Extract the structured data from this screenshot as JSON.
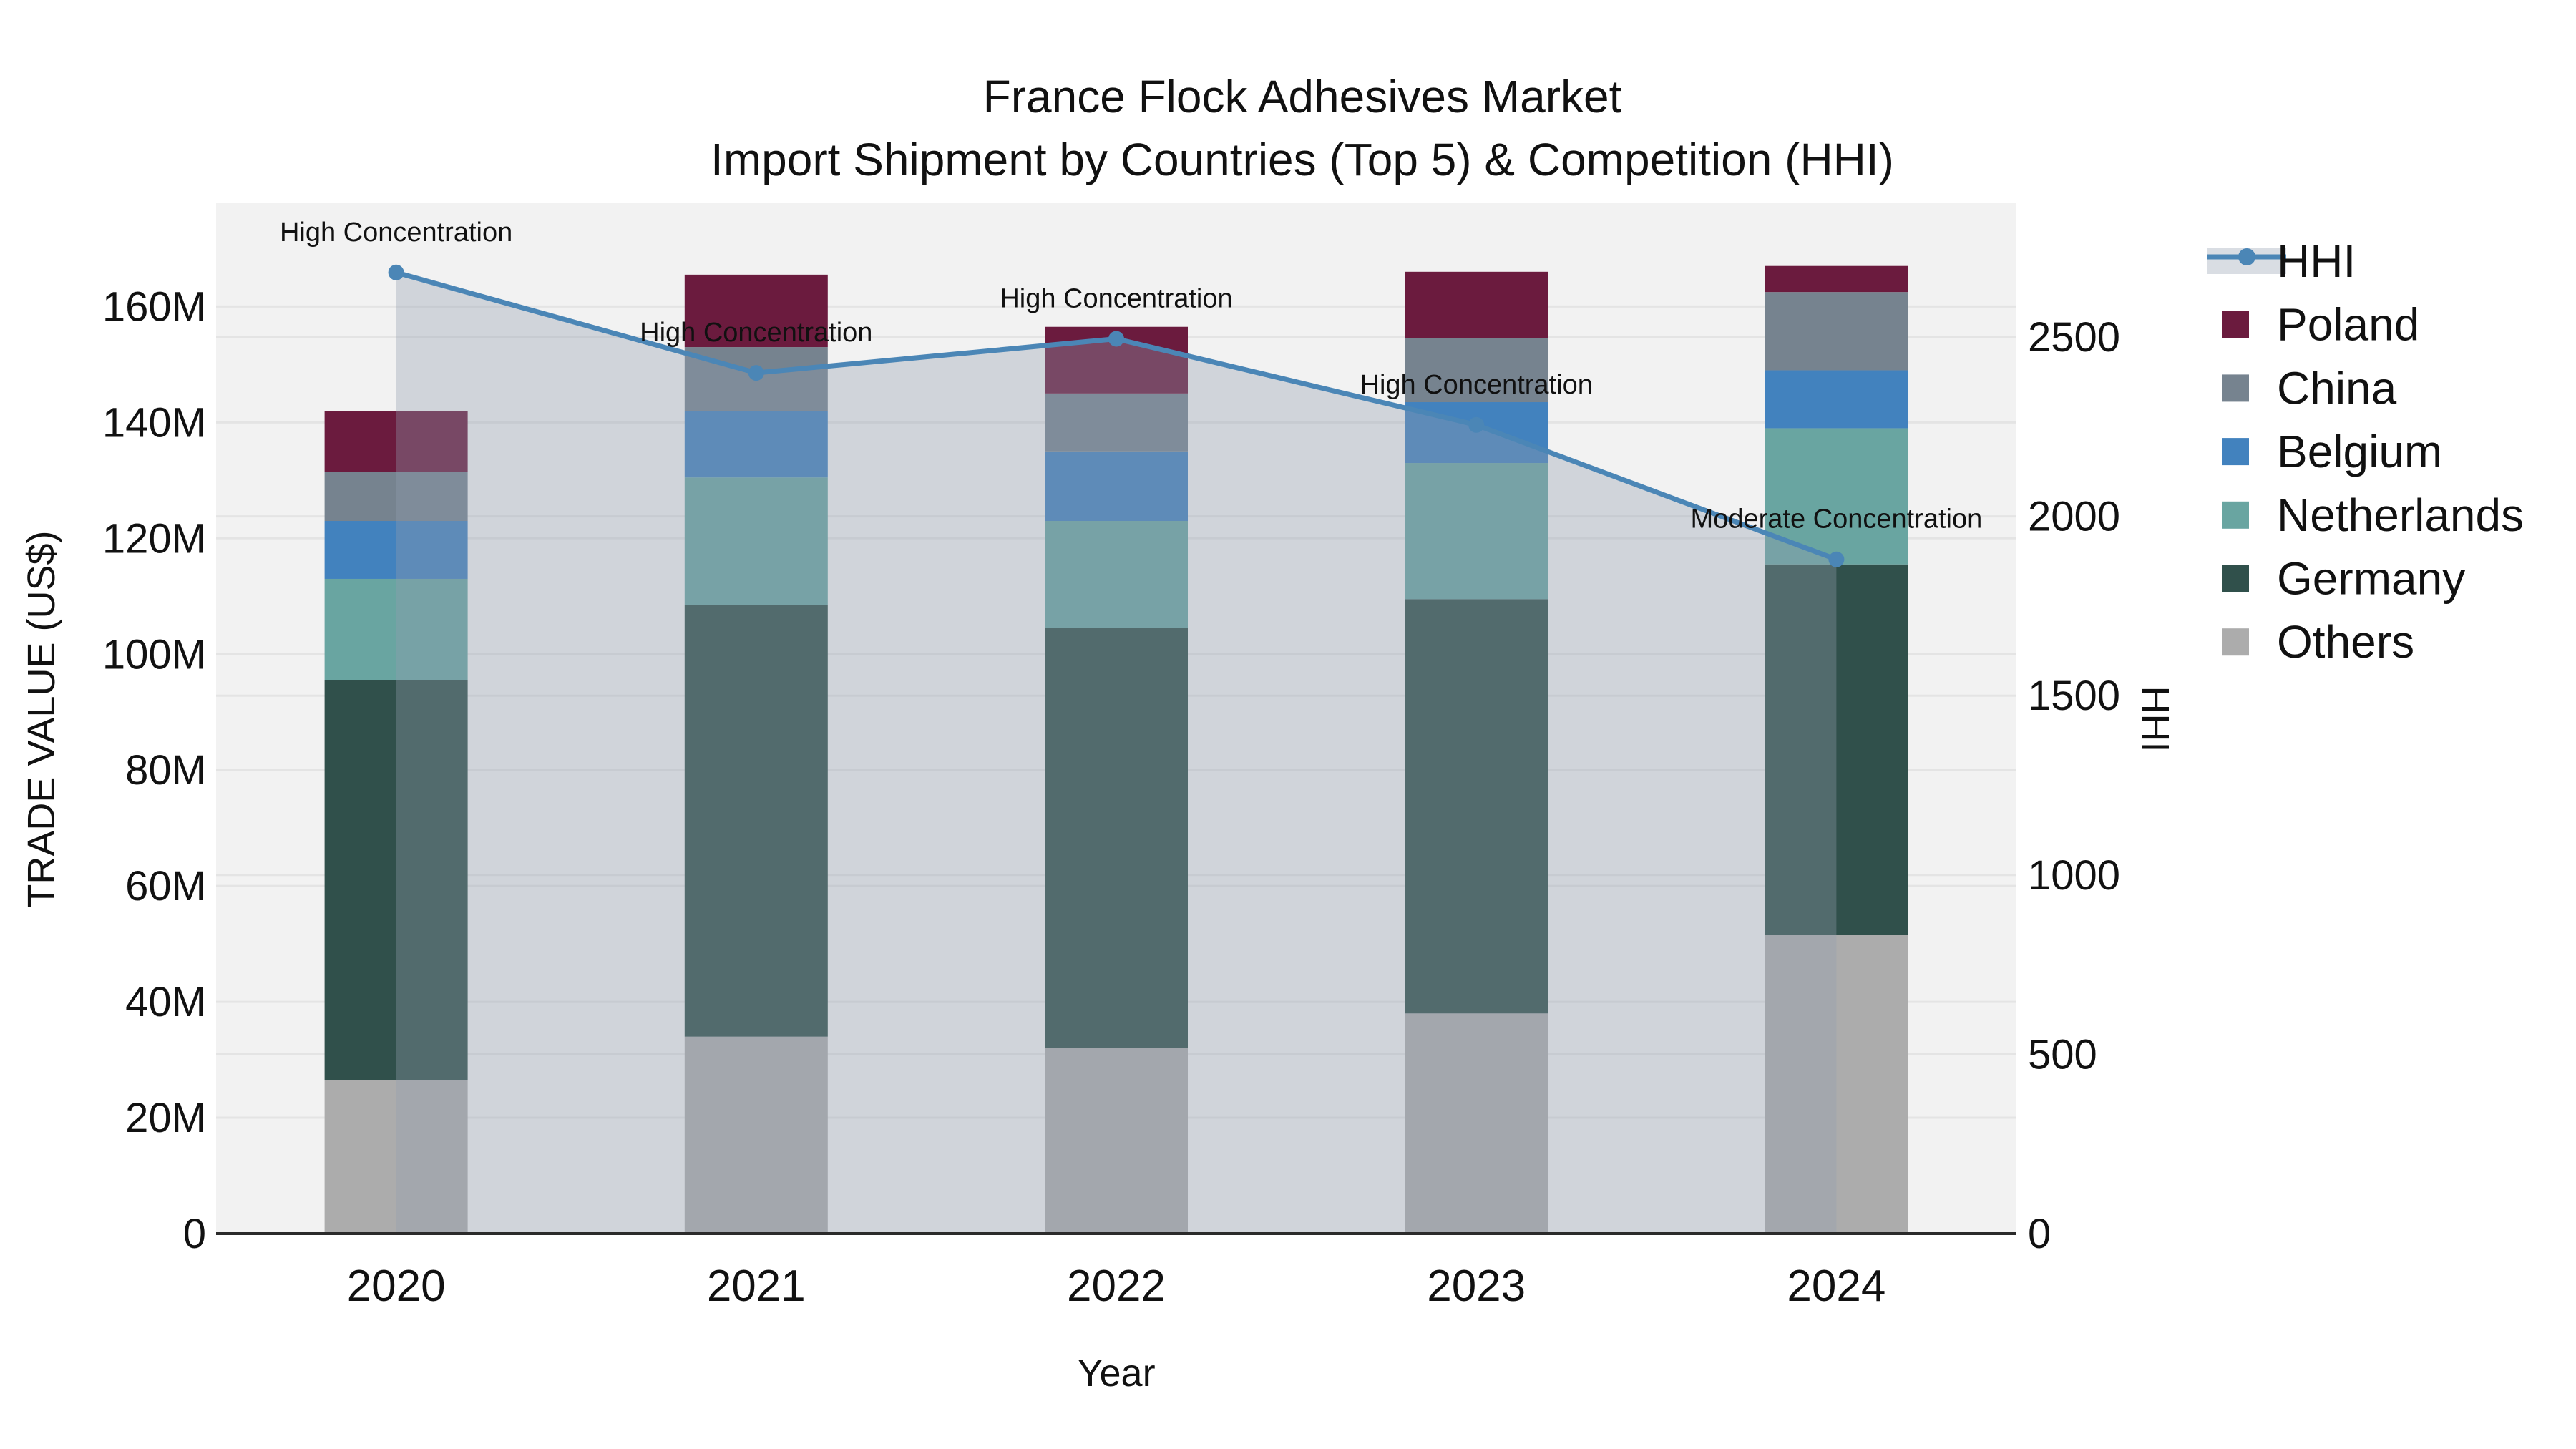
{
  "title": {
    "line1": "France Flock Adhesives Market",
    "line2": "Import Shipment by Countries (Top 5) & Competition (HHI)"
  },
  "axes": {
    "x_label": "Year",
    "y_left_label": "TRADE VALUE (US$)",
    "y_right_label": "HHI",
    "y_left_ticks": [
      {
        "value": 0,
        "label": "0"
      },
      {
        "value": 20,
        "label": "20M"
      },
      {
        "value": 40,
        "label": "40M"
      },
      {
        "value": 60,
        "label": "60M"
      },
      {
        "value": 80,
        "label": "80M"
      },
      {
        "value": 100,
        "label": "100M"
      },
      {
        "value": 120,
        "label": "120M"
      },
      {
        "value": 140,
        "label": "140M"
      },
      {
        "value": 160,
        "label": "160M"
      }
    ],
    "y_right_ticks": [
      {
        "value": 0,
        "label": "0"
      },
      {
        "value": 500,
        "label": "500"
      },
      {
        "value": 1000,
        "label": "1000"
      },
      {
        "value": 1500,
        "label": "1500"
      },
      {
        "value": 2000,
        "label": "2000"
      },
      {
        "value": 2500,
        "label": "2500"
      }
    ]
  },
  "chart_data": {
    "type": "stacked-bar + line (dual axis)",
    "title": "France Flock Adhesives Market — Import Shipment by Countries (Top 5) & Competition (HHI)",
    "xlabel": "Year",
    "ylabel_left": "TRADE VALUE (US$)",
    "ylabel_right": "HHI",
    "y_left_unit": "millions USD",
    "y_left_range": [
      0,
      160
    ],
    "y_right_range": [
      0,
      2500
    ],
    "grid": true,
    "legend_position": "right",
    "categories": [
      "2020",
      "2021",
      "2022",
      "2023",
      "2024"
    ],
    "series": [
      {
        "name": "Poland",
        "values": [
          10.5,
          12.5,
          11.5,
          11.5,
          4.5
        ]
      },
      {
        "name": "China",
        "values": [
          8.5,
          11.0,
          10.0,
          11.0,
          13.5
        ]
      },
      {
        "name": "Belgium",
        "values": [
          10.0,
          11.5,
          12.0,
          10.5,
          10.0
        ]
      },
      {
        "name": "Netherlands",
        "values": [
          17.5,
          22.0,
          18.5,
          23.5,
          23.5
        ]
      },
      {
        "name": "Germany",
        "values": [
          69.0,
          74.5,
          72.5,
          71.5,
          64.0
        ]
      },
      {
        "name": "Others",
        "values": [
          26.5,
          34.0,
          32.0,
          38.0,
          51.5
        ]
      }
    ],
    "bar_totals": [
      142.0,
      165.5,
      156.5,
      166.0,
      167.0
    ],
    "hhi_line": {
      "name": "HHI",
      "values": [
        2680,
        2400,
        2495,
        2255,
        1880
      ],
      "annotations": [
        "High Concentration",
        "High Concentration",
        "High Concentration",
        "High Concentration",
        "Moderate Concentration"
      ]
    }
  },
  "legend": {
    "items": [
      {
        "label": "HHI",
        "type": "line",
        "color": "#4B86B6"
      },
      {
        "label": "Poland",
        "type": "swatch",
        "color": "#6B1B3E"
      },
      {
        "label": "China",
        "type": "swatch",
        "color": "#76838F"
      },
      {
        "label": "Belgium",
        "type": "swatch",
        "color": "#4282BE"
      },
      {
        "label": "Netherlands",
        "type": "swatch",
        "color": "#69A5A1"
      },
      {
        "label": "Germany",
        "type": "swatch",
        "color": "#30504B"
      },
      {
        "label": "Others",
        "type": "swatch",
        "color": "#ACACAC"
      }
    ]
  },
  "colors": {
    "plot_background": "#F2F2F2",
    "figure_background": "#FFFFFF",
    "gridline": "rgba(0,0,0,0.055)",
    "axis_line": "#2B2B2B",
    "hhi_line": "#4B86B6",
    "hhi_area_fill": "rgba(147,157,174,0.35)",
    "annotation_text": "#000000"
  }
}
